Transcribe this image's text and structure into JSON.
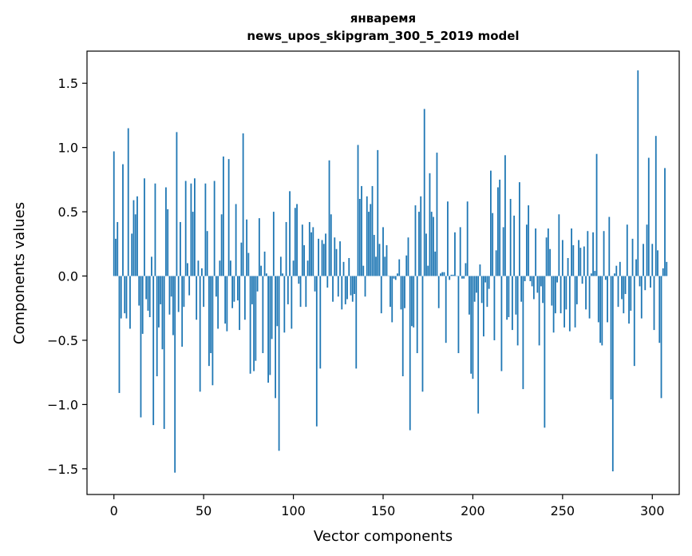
{
  "chart_data": {
    "type": "bar",
    "title": "январемя",
    "subtitle": "news_upos_skipgram_300_5_2019 model",
    "xlabel": "Vector components",
    "ylabel": "Components values",
    "xlim": [
      -15,
      315
    ],
    "ylim": [
      -1.7,
      1.75
    ],
    "xticks": [
      0,
      50,
      100,
      150,
      200,
      250,
      300
    ],
    "yticks": [
      -1.5,
      -1.0,
      -0.5,
      0.0,
      0.5,
      1.0,
      1.5
    ],
    "ytick_labels": [
      "−1.5",
      "−1.0",
      "−0.5",
      "0.0",
      "0.5",
      "1.0",
      "1.5"
    ],
    "bar_color": "#1f77b4",
    "grid": false,
    "values": [
      0.97,
      0.29,
      0.42,
      -0.91,
      -0.33,
      0.87,
      -0.29,
      -0.33,
      1.15,
      -0.41,
      0.33,
      0.59,
      0.48,
      0.62,
      -0.23,
      -1.1,
      -0.45,
      0.76,
      -0.18,
      -0.27,
      -0.32,
      0.15,
      -1.16,
      0.72,
      -0.78,
      -0.4,
      -0.22,
      -0.57,
      -1.19,
      0.69,
      0.52,
      -0.3,
      -0.16,
      -0.46,
      -1.53,
      1.12,
      -0.28,
      0.42,
      -0.55,
      -0.24,
      0.74,
      0.1,
      -0.15,
      0.72,
      0.5,
      0.76,
      -0.34,
      0.12,
      -0.9,
      0.06,
      -0.24,
      0.72,
      0.35,
      -0.7,
      -0.6,
      -0.85,
      0.74,
      -0.16,
      -0.41,
      0.12,
      0.48,
      0.93,
      -0.37,
      -0.43,
      0.91,
      0.12,
      -0.25,
      -0.2,
      0.56,
      -0.19,
      -0.42,
      0.26,
      1.11,
      -0.34,
      0.44,
      0.18,
      -0.76,
      -0.22,
      -0.74,
      -0.66,
      -0.12,
      0.45,
      0.08,
      -0.6,
      0.19,
      0.02,
      -0.83,
      -0.77,
      -0.49,
      0.5,
      -0.95,
      -0.39,
      -1.36,
      0.15,
      0.02,
      -0.44,
      0.42,
      -0.22,
      0.66,
      -0.41,
      0.12,
      0.53,
      0.56,
      -0.06,
      -0.24,
      0.4,
      0.24,
      -0.24,
      0.12,
      0.42,
      0.34,
      0.38,
      -0.12,
      -1.17,
      0.29,
      -0.72,
      0.28,
      0.25,
      0.33,
      -0.09,
      0.9,
      0.48,
      -0.2,
      0.3,
      0.21,
      -0.16,
      0.27,
      -0.26,
      0.11,
      -0.22,
      -0.18,
      0.14,
      -0.15,
      -0.2,
      -0.14,
      -0.72,
      1.02,
      0.6,
      0.7,
      0.08,
      -0.16,
      0.62,
      0.5,
      0.56,
      0.7,
      0.32,
      0.15,
      0.98,
      0.25,
      -0.29,
      0.38,
      0.15,
      0.24,
      0.0,
      -0.24,
      -0.36,
      -0.02,
      -0.03,
      0.02,
      0.13,
      -0.26,
      -0.78,
      -0.25,
      0.16,
      0.3,
      -1.2,
      -0.39,
      -0.4,
      0.55,
      -0.6,
      0.5,
      0.62,
      -0.9,
      1.3,
      0.33,
      0.08,
      0.8,
      0.5,
      0.46,
      0.19,
      0.96,
      -0.25,
      0.02,
      0.03,
      0.03,
      -0.52,
      0.58,
      -0.03,
      0.01,
      0.01,
      0.34,
      0.0,
      -0.6,
      0.38,
      -0.02,
      -0.02,
      0.1,
      0.58,
      -0.3,
      -0.76,
      -0.8,
      -0.2,
      -0.13,
      -1.07,
      0.09,
      -0.21,
      -0.47,
      -0.05,
      -0.24,
      -0.1,
      0.82,
      0.49,
      -0.5,
      0.2,
      0.69,
      0.75,
      -0.74,
      0.38,
      0.94,
      -0.34,
      -0.32,
      0.6,
      -0.42,
      0.47,
      -0.3,
      -0.54,
      0.73,
      -0.2,
      -0.88,
      -0.04,
      0.4,
      0.55,
      -0.04,
      -0.08,
      -0.18,
      0.37,
      -0.13,
      -0.54,
      -0.08,
      -0.21,
      -1.18,
      0.3,
      0.37,
      0.21,
      -0.23,
      -0.44,
      -0.29,
      -0.05,
      0.48,
      -0.29,
      0.28,
      -0.4,
      -0.26,
      0.14,
      -0.43,
      0.37,
      0.24,
      -0.4,
      -0.22,
      0.28,
      0.22,
      -0.06,
      0.23,
      -0.26,
      0.35,
      -0.33,
      0.02,
      0.34,
      0.04,
      0.95,
      -0.36,
      -0.52,
      -0.54,
      0.35,
      -0.03,
      -0.36,
      0.46,
      -0.96,
      -1.52,
      0.02,
      0.08,
      -0.24,
      0.11,
      -0.18,
      -0.29,
      -0.14,
      0.4,
      -0.37,
      -0.27,
      0.29,
      -0.7,
      0.13,
      1.6,
      -0.08,
      -0.33,
      0.25,
      -0.11,
      0.4,
      0.92,
      -0.09,
      0.25,
      -0.42,
      1.09,
      0.2,
      -0.52,
      -0.95,
      0.06,
      0.84,
      0.11
    ]
  }
}
